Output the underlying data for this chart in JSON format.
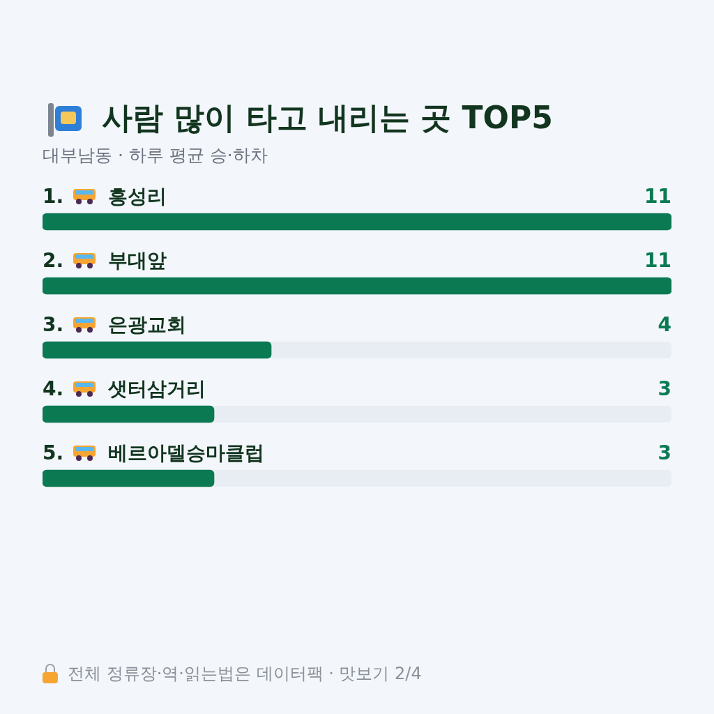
{
  "chart_data": {
    "type": "bar",
    "orientation": "horizontal",
    "title": "사람 많이 타고 내리는 곳 TOP5",
    "subtitle": "대부남동 · 하루 평균 승·하차",
    "categories": [
      "1. 흥성리",
      "2. 부대앞",
      "3. 은광교회",
      "4. 샛터삼거리",
      "5. 베르아델승마클럽"
    ],
    "values": [
      11,
      11,
      4,
      3,
      3
    ],
    "color": "#0b7a53",
    "data_labels": true,
    "annotations": [
      "전체 정류장·역·읽는법은 데이터팩 · 맛보기 2/4"
    ]
  }
}
